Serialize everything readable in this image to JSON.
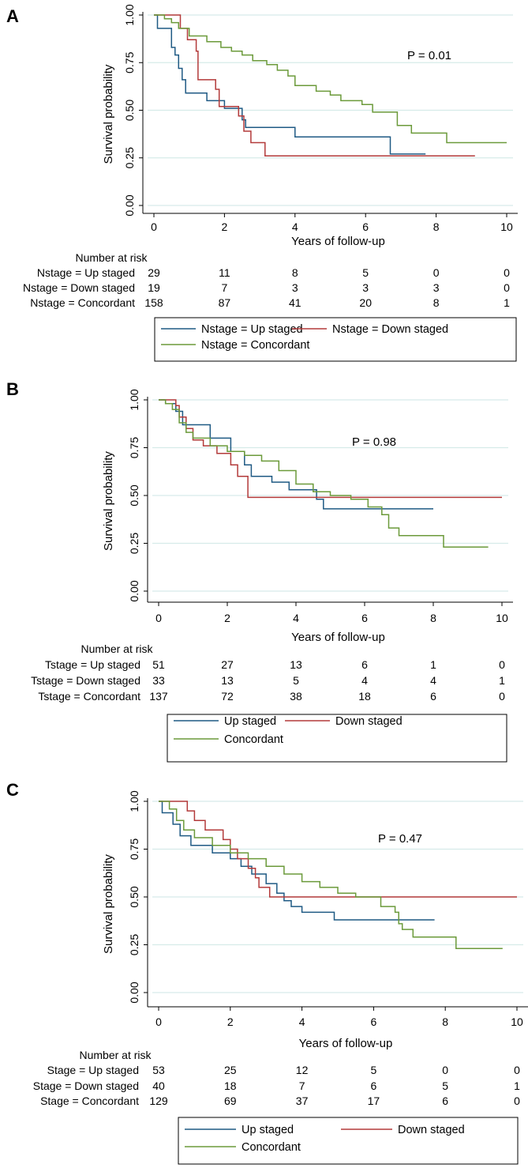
{
  "figure": {
    "y_label": "Survival probability",
    "x_label": "Years of follow-up",
    "risk_title": "Number at risk"
  },
  "colors": {
    "blue": "#1f5a84",
    "red": "#b33a3a",
    "green": "#6b9a3a",
    "grid": "#d6ebe9",
    "axis": "#000000"
  },
  "chart_data": [
    {
      "panel": "A",
      "type": "line",
      "step": true,
      "xlabel": "Years of follow-up",
      "ylabel": "Survival probability",
      "xlim": [
        0,
        10
      ],
      "ylim": [
        0,
        1
      ],
      "xticks": [
        "0",
        "2",
        "4",
        "6",
        "8",
        "10"
      ],
      "yticks": [
        "0.00",
        "0.25",
        "0.50",
        "0.75",
        "1.00"
      ],
      "grid": true,
      "annotation": "P = 0.01",
      "series": [
        {
          "name": "Nstage = Up staged",
          "color": "blue",
          "points": [
            [
              0,
              1.0
            ],
            [
              0.1,
              0.93
            ],
            [
              0.5,
              0.83
            ],
            [
              0.6,
              0.79
            ],
            [
              0.7,
              0.72
            ],
            [
              0.8,
              0.66
            ],
            [
              0.9,
              0.59
            ],
            [
              1.5,
              0.55
            ],
            [
              2.0,
              0.51
            ],
            [
              2.5,
              0.45
            ],
            [
              2.6,
              0.41
            ],
            [
              4.0,
              0.36
            ],
            [
              6.7,
              0.27
            ],
            [
              7.7,
              0.27
            ]
          ]
        },
        {
          "name": "Nstage = Down staged",
          "color": "red",
          "points": [
            [
              0,
              1.0
            ],
            [
              0.75,
              0.93
            ],
            [
              0.95,
              0.87
            ],
            [
              1.2,
              0.81
            ],
            [
              1.25,
              0.66
            ],
            [
              1.75,
              0.61
            ],
            [
              1.85,
              0.52
            ],
            [
              2.4,
              0.47
            ],
            [
              2.55,
              0.39
            ],
            [
              2.75,
              0.33
            ],
            [
              3.15,
              0.26
            ],
            [
              9.1,
              0.26
            ]
          ]
        },
        {
          "name": "Nstage = Concordant",
          "color": "green",
          "points": [
            [
              0,
              1.0
            ],
            [
              0.3,
              0.98
            ],
            [
              0.5,
              0.96
            ],
            [
              0.7,
              0.93
            ],
            [
              1.0,
              0.89
            ],
            [
              1.5,
              0.86
            ],
            [
              1.9,
              0.83
            ],
            [
              2.2,
              0.81
            ],
            [
              2.5,
              0.79
            ],
            [
              2.8,
              0.76
            ],
            [
              3.2,
              0.74
            ],
            [
              3.5,
              0.71
            ],
            [
              3.8,
              0.68
            ],
            [
              4.0,
              0.63
            ],
            [
              4.6,
              0.6
            ],
            [
              5.0,
              0.58
            ],
            [
              5.3,
              0.55
            ],
            [
              5.9,
              0.53
            ],
            [
              6.2,
              0.49
            ],
            [
              6.7,
              0.49
            ],
            [
              6.9,
              0.42
            ],
            [
              7.3,
              0.38
            ],
            [
              8.3,
              0.33
            ],
            [
              10.0,
              0.33
            ]
          ]
        }
      ],
      "risk_table": {
        "title": "Number at risk",
        "times": [
          0,
          2,
          4,
          6,
          8,
          10
        ],
        "rows": [
          {
            "label": "Nstage = Up staged",
            "counts": [
              "29",
              "11",
              "8",
              "5",
              "0",
              "0"
            ]
          },
          {
            "label": "Nstage = Down staged",
            "counts": [
              "19",
              "7",
              "3",
              "3",
              "3",
              "0"
            ]
          },
          {
            "label": "Nstage = Concordant",
            "counts": [
              "158",
              "87",
              "41",
              "20",
              "8",
              "1"
            ]
          }
        ]
      },
      "legend": [
        "Nstage = Up staged",
        "Nstage = Down staged",
        "Nstage = Concordant"
      ]
    },
    {
      "panel": "B",
      "type": "line",
      "step": true,
      "xlabel": "Years of follow-up",
      "ylabel": "Survival probability",
      "xlim": [
        0,
        10
      ],
      "ylim": [
        0,
        1
      ],
      "xticks": [
        "0",
        "2",
        "4",
        "6",
        "8",
        "10"
      ],
      "yticks": [
        "0.00",
        "0.25",
        "0.50",
        "0.75",
        "1.00"
      ],
      "grid": true,
      "annotation": "P = 0.98",
      "series": [
        {
          "name": "Up staged",
          "color": "blue",
          "points": [
            [
              0,
              1.0
            ],
            [
              0.2,
              0.98
            ],
            [
              0.5,
              0.94
            ],
            [
              0.7,
              0.87
            ],
            [
              1.5,
              0.8
            ],
            [
              2.1,
              0.73
            ],
            [
              2.5,
              0.66
            ],
            [
              2.7,
              0.6
            ],
            [
              3.3,
              0.57
            ],
            [
              3.8,
              0.53
            ],
            [
              4.6,
              0.48
            ],
            [
              4.8,
              0.43
            ],
            [
              8.0,
              0.43
            ]
          ]
        },
        {
          "name": "Down staged",
          "color": "red",
          "points": [
            [
              0,
              1.0
            ],
            [
              0.5,
              0.97
            ],
            [
              0.6,
              0.91
            ],
            [
              0.8,
              0.85
            ],
            [
              1.0,
              0.79
            ],
            [
              1.3,
              0.76
            ],
            [
              1.7,
              0.72
            ],
            [
              2.1,
              0.66
            ],
            [
              2.3,
              0.6
            ],
            [
              2.6,
              0.49
            ],
            [
              10.0,
              0.49
            ]
          ]
        },
        {
          "name": "Concordant",
          "color": "green",
          "points": [
            [
              0,
              1.0
            ],
            [
              0.2,
              0.98
            ],
            [
              0.4,
              0.95
            ],
            [
              0.6,
              0.88
            ],
            [
              0.8,
              0.83
            ],
            [
              1.0,
              0.8
            ],
            [
              1.5,
              0.76
            ],
            [
              2.0,
              0.73
            ],
            [
              2.5,
              0.71
            ],
            [
              3.0,
              0.68
            ],
            [
              3.5,
              0.63
            ],
            [
              4.0,
              0.56
            ],
            [
              4.5,
              0.52
            ],
            [
              5.0,
              0.5
            ],
            [
              5.6,
              0.48
            ],
            [
              6.1,
              0.44
            ],
            [
              6.5,
              0.4
            ],
            [
              6.7,
              0.33
            ],
            [
              7.0,
              0.29
            ],
            [
              8.3,
              0.23
            ],
            [
              9.6,
              0.23
            ]
          ]
        }
      ],
      "risk_table": {
        "title": "Number at risk",
        "times": [
          0,
          2,
          4,
          6,
          8,
          10
        ],
        "rows": [
          {
            "label": "Tstage = Up staged",
            "counts": [
              "51",
              "27",
              "13",
              "6",
              "1",
              "0"
            ]
          },
          {
            "label": "Tstage = Down staged",
            "counts": [
              "33",
              "13",
              "5",
              "4",
              "4",
              "1"
            ]
          },
          {
            "label": "Tstage = Concordant",
            "counts": [
              "137",
              "72",
              "38",
              "18",
              "6",
              "0"
            ]
          }
        ]
      },
      "legend": [
        "Up staged",
        "Down staged",
        "Concordant"
      ]
    },
    {
      "panel": "C",
      "type": "line",
      "step": true,
      "xlabel": "Years of follow-up",
      "ylabel": "Survival probability",
      "xlim": [
        0,
        10
      ],
      "ylim": [
        0,
        1
      ],
      "xticks": [
        "0",
        "2",
        "4",
        "6",
        "8",
        "10"
      ],
      "yticks": [
        "0.00",
        "0.25",
        "0.50",
        "0.75",
        "1.00"
      ],
      "grid": true,
      "annotation": "P = 0.47",
      "series": [
        {
          "name": "Up staged",
          "color": "blue",
          "points": [
            [
              0,
              1.0
            ],
            [
              0.1,
              0.94
            ],
            [
              0.4,
              0.88
            ],
            [
              0.6,
              0.82
            ],
            [
              0.9,
              0.77
            ],
            [
              1.5,
              0.73
            ],
            [
              2.0,
              0.7
            ],
            [
              2.3,
              0.66
            ],
            [
              2.6,
              0.62
            ],
            [
              3.0,
              0.57
            ],
            [
              3.3,
              0.52
            ],
            [
              3.5,
              0.48
            ],
            [
              3.7,
              0.45
            ],
            [
              4.0,
              0.42
            ],
            [
              4.9,
              0.38
            ],
            [
              7.7,
              0.38
            ]
          ]
        },
        {
          "name": "Down staged",
          "color": "red",
          "points": [
            [
              0,
              1.0
            ],
            [
              0.8,
              0.95
            ],
            [
              1.0,
              0.9
            ],
            [
              1.3,
              0.85
            ],
            [
              1.8,
              0.8
            ],
            [
              2.0,
              0.75
            ],
            [
              2.2,
              0.7
            ],
            [
              2.5,
              0.65
            ],
            [
              2.7,
              0.6
            ],
            [
              2.8,
              0.55
            ],
            [
              3.1,
              0.5
            ],
            [
              10.0,
              0.5
            ]
          ]
        },
        {
          "name": "Concordant",
          "color": "green",
          "points": [
            [
              0,
              1.0
            ],
            [
              0.3,
              0.96
            ],
            [
              0.5,
              0.9
            ],
            [
              0.7,
              0.85
            ],
            [
              1.0,
              0.81
            ],
            [
              1.5,
              0.77
            ],
            [
              2.0,
              0.73
            ],
            [
              2.5,
              0.7
            ],
            [
              3.0,
              0.66
            ],
            [
              3.5,
              0.62
            ],
            [
              4.0,
              0.58
            ],
            [
              4.5,
              0.55
            ],
            [
              5.0,
              0.52
            ],
            [
              5.5,
              0.5
            ],
            [
              6.2,
              0.45
            ],
            [
              6.6,
              0.42
            ],
            [
              6.7,
              0.36
            ],
            [
              6.8,
              0.33
            ],
            [
              7.1,
              0.29
            ],
            [
              8.3,
              0.23
            ],
            [
              9.6,
              0.23
            ]
          ]
        }
      ],
      "risk_table": {
        "title": "Number at risk",
        "times": [
          0,
          2,
          4,
          6,
          8,
          10
        ],
        "rows": [
          {
            "label": "Stage = Up staged",
            "counts": [
              "53",
              "25",
              "12",
              "5",
              "0",
              "0"
            ]
          },
          {
            "label": "Stage = Down staged",
            "counts": [
              "40",
              "18",
              "7",
              "6",
              "5",
              "1"
            ]
          },
          {
            "label": "Stage = Concordant",
            "counts": [
              "129",
              "69",
              "37",
              "17",
              "6",
              "0"
            ]
          }
        ]
      },
      "legend": [
        "Up staged",
        "Down staged",
        "Concordant"
      ]
    }
  ]
}
